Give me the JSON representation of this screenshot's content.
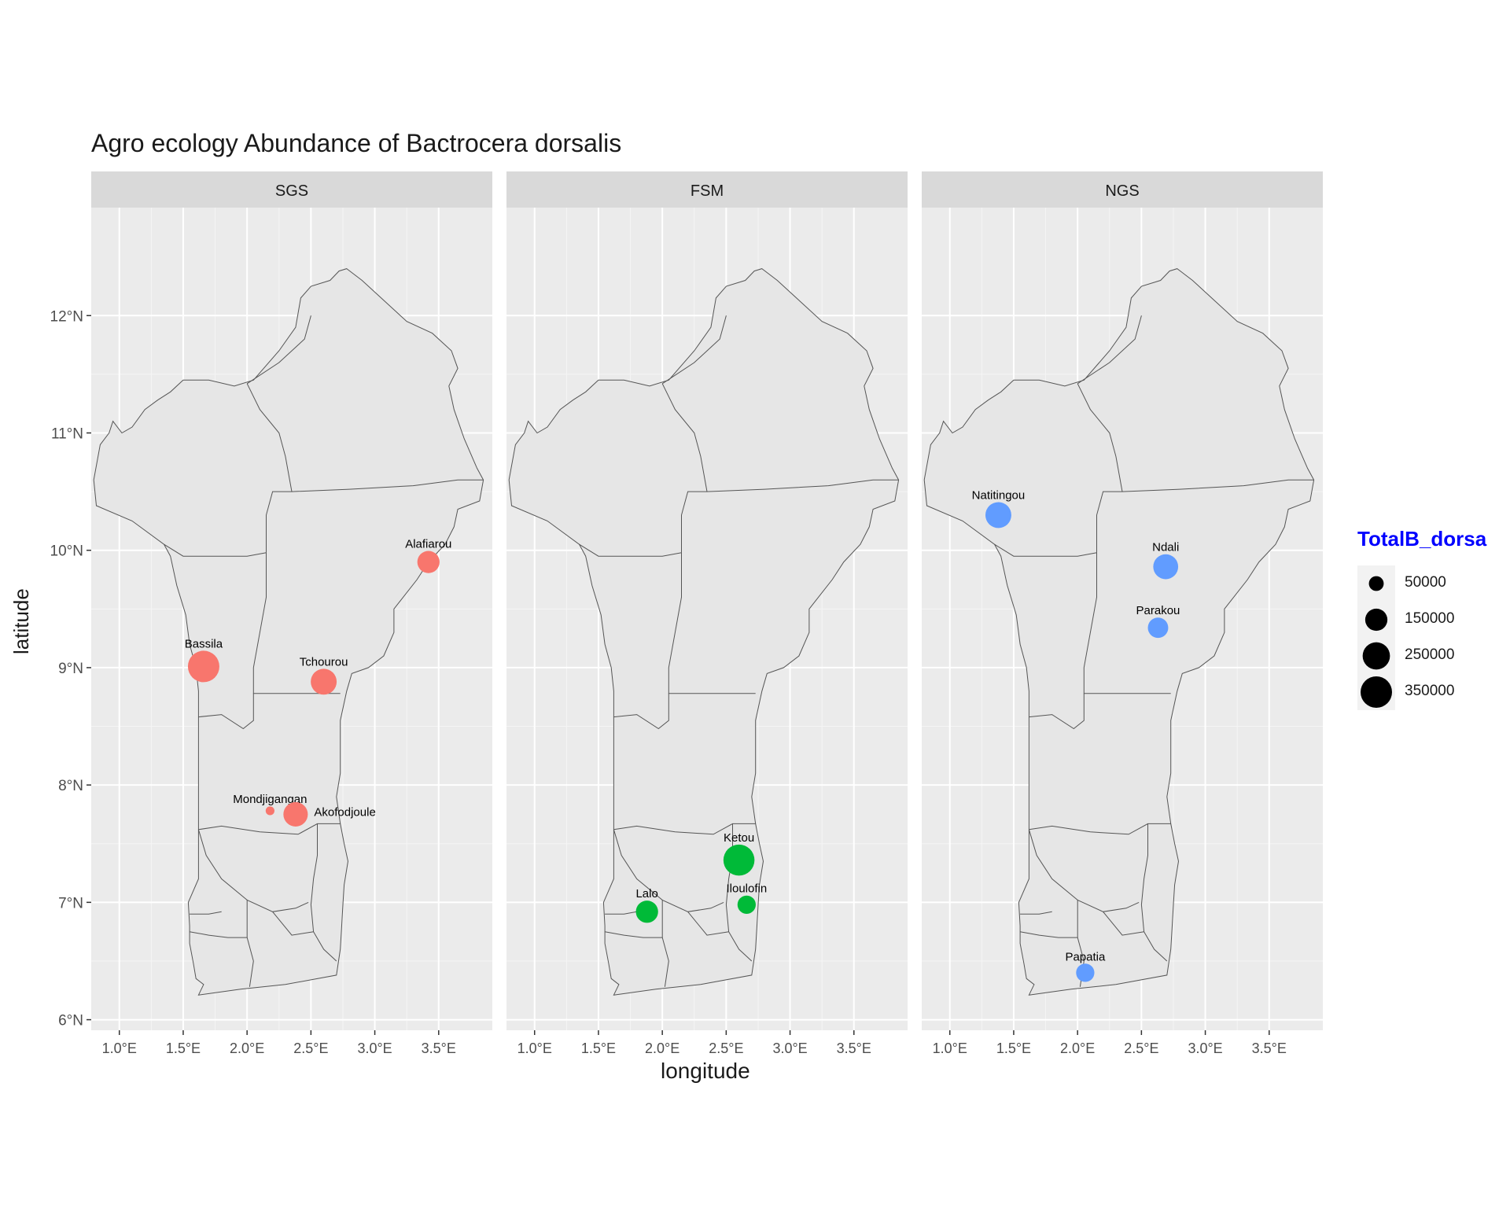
{
  "colors": {
    "SGS": "#F8766D",
    "FSM": "#00BA38",
    "NGS": "#619CFF",
    "legend_title": "#0000FF"
  },
  "chart_data": {
    "type": "scatter",
    "title": "Agro ecology Abundance of Bactrocera dorsalis",
    "xlabel": "longitude",
    "ylabel": "latitude",
    "xlim": [
      0.78,
      3.92
    ],
    "ylim": [
      5.91,
      12.92
    ],
    "x_ticks": [
      1.0,
      1.5,
      2.0,
      2.5,
      3.0,
      3.5
    ],
    "x_tick_labels": [
      "1.0°E",
      "1.5°E",
      "2.0°E",
      "2.5°E",
      "3.0°E",
      "3.5°E"
    ],
    "y_ticks": [
      6,
      7,
      8,
      9,
      10,
      11,
      12
    ],
    "y_tick_labels": [
      "6°N",
      "7°N",
      "8°N",
      "9°N",
      "10°N",
      "11°N",
      "12°N"
    ],
    "grid": true,
    "facets": [
      {
        "name": "SGS",
        "points": [
          {
            "label": "Alafiarou",
            "x": 3.42,
            "y": 9.9,
            "size": 150000
          },
          {
            "label": "Bassila",
            "x": 1.66,
            "y": 9.01,
            "size": 350000
          },
          {
            "label": "Tchourou",
            "x": 2.6,
            "y": 8.88,
            "size": 220000
          },
          {
            "label": "Mondjigangan",
            "x": 2.18,
            "y": 7.78,
            "size": 8000
          },
          {
            "label": "Akofodjoule",
            "x": 2.38,
            "y": 7.75,
            "size": 190000
          }
        ]
      },
      {
        "name": "FSM",
        "points": [
          {
            "label": "Ketou",
            "x": 2.6,
            "y": 7.36,
            "size": 340000
          },
          {
            "label": "Lalo",
            "x": 1.88,
            "y": 6.92,
            "size": 150000
          },
          {
            "label": "Iloulofin",
            "x": 2.66,
            "y": 6.98,
            "size": 90000
          }
        ]
      },
      {
        "name": "NGS",
        "points": [
          {
            "label": "Natitingou",
            "x": 1.38,
            "y": 10.3,
            "size": 220000
          },
          {
            "label": "Ndali",
            "x": 2.69,
            "y": 9.86,
            "size": 200000
          },
          {
            "label": "Parakou",
            "x": 2.63,
            "y": 9.34,
            "size": 120000
          },
          {
            "label": "Papatia",
            "x": 2.06,
            "y": 6.4,
            "size": 90000
          }
        ]
      }
    ],
    "legend": {
      "title": "TotalB_dorsa",
      "position": "right",
      "entries": [
        {
          "label": "50000",
          "value": 50000
        },
        {
          "label": "150000",
          "value": 150000
        },
        {
          "label": "250000",
          "value": 250000
        },
        {
          "label": "350000",
          "value": 350000
        }
      ]
    }
  },
  "map_outline": {
    "border": [
      [
        2.78,
        12.4
      ],
      [
        2.9,
        12.3
      ],
      [
        3.05,
        12.15
      ],
      [
        3.25,
        11.95
      ],
      [
        3.45,
        11.85
      ],
      [
        3.6,
        11.7
      ],
      [
        3.65,
        11.55
      ],
      [
        3.58,
        11.4
      ],
      [
        3.62,
        11.2
      ],
      [
        3.7,
        10.95
      ],
      [
        3.8,
        10.7
      ],
      [
        3.85,
        10.6
      ],
      [
        3.82,
        10.42
      ],
      [
        3.65,
        10.35
      ],
      [
        3.62,
        10.2
      ],
      [
        3.55,
        10.05
      ],
      [
        3.42,
        9.9
      ],
      [
        3.33,
        9.75
      ],
      [
        3.15,
        9.5
      ],
      [
        3.15,
        9.3
      ],
      [
        3.07,
        9.1
      ],
      [
        2.95,
        9.0
      ],
      [
        2.82,
        8.95
      ],
      [
        2.78,
        8.8
      ],
      [
        2.73,
        8.55
      ],
      [
        2.73,
        8.3
      ],
      [
        2.73,
        8.1
      ],
      [
        2.7,
        7.9
      ],
      [
        2.73,
        7.67
      ],
      [
        2.76,
        7.5
      ],
      [
        2.79,
        7.35
      ],
      [
        2.76,
        7.15
      ],
      [
        2.75,
        6.98
      ],
      [
        2.74,
        6.78
      ],
      [
        2.73,
        6.6
      ],
      [
        2.7,
        6.38
      ],
      [
        2.3,
        6.3
      ],
      [
        1.95,
        6.26
      ],
      [
        1.62,
        6.21
      ],
      [
        1.66,
        6.3
      ],
      [
        1.6,
        6.35
      ],
      [
        1.58,
        6.48
      ],
      [
        1.55,
        6.65
      ],
      [
        1.55,
        6.8
      ],
      [
        1.54,
        7.0
      ],
      [
        1.62,
        7.2
      ],
      [
        1.62,
        7.4
      ],
      [
        1.62,
        7.6
      ],
      [
        1.62,
        7.9
      ],
      [
        1.62,
        8.2
      ],
      [
        1.62,
        8.5
      ],
      [
        1.62,
        8.8
      ],
      [
        1.6,
        9.0
      ],
      [
        1.55,
        9.2
      ],
      [
        1.52,
        9.45
      ],
      [
        1.45,
        9.7
      ],
      [
        1.4,
        9.95
      ],
      [
        1.35,
        10.05
      ],
      [
        1.1,
        10.25
      ],
      [
        0.82,
        10.38
      ],
      [
        0.8,
        10.6
      ],
      [
        0.85,
        10.9
      ],
      [
        0.92,
        11.0
      ],
      [
        0.95,
        11.1
      ],
      [
        1.02,
        11.0
      ],
      [
        1.1,
        11.05
      ],
      [
        1.2,
        11.2
      ],
      [
        1.3,
        11.28
      ],
      [
        1.4,
        11.35
      ],
      [
        1.5,
        11.45
      ],
      [
        1.7,
        11.45
      ],
      [
        1.9,
        11.4
      ],
      [
        2.05,
        11.45
      ],
      [
        2.25,
        11.7
      ],
      [
        2.38,
        11.9
      ],
      [
        2.42,
        12.15
      ],
      [
        2.5,
        12.25
      ],
      [
        2.65,
        12.3
      ],
      [
        2.72,
        12.38
      ],
      [
        2.78,
        12.4
      ]
    ],
    "internal": [
      [
        [
          1.35,
          10.05
        ],
        [
          1.5,
          9.95
        ],
        [
          1.8,
          9.95
        ],
        [
          2.0,
          9.95
        ],
        [
          2.15,
          9.98
        ]
      ],
      [
        [
          2.15,
          9.98
        ],
        [
          2.15,
          10.3
        ],
        [
          2.2,
          10.5
        ],
        [
          2.35,
          10.5
        ],
        [
          2.8,
          10.52
        ],
        [
          3.3,
          10.55
        ],
        [
          3.65,
          10.6
        ],
        [
          3.85,
          10.6
        ]
      ],
      [
        [
          2.35,
          10.5
        ],
        [
          2.3,
          10.8
        ],
        [
          2.25,
          11.0
        ],
        [
          2.1,
          11.2
        ],
        [
          2.0,
          11.42
        ]
      ],
      [
        [
          2.0,
          11.42
        ],
        [
          2.25,
          11.6
        ],
        [
          2.45,
          11.8
        ],
        [
          2.5,
          12.0
        ]
      ],
      [
        [
          2.15,
          9.98
        ],
        [
          2.15,
          9.6
        ],
        [
          2.1,
          9.3
        ],
        [
          2.05,
          9.0
        ],
        [
          2.05,
          8.78
        ],
        [
          2.3,
          8.78
        ],
        [
          2.55,
          8.78
        ],
        [
          2.73,
          8.78
        ]
      ],
      [
        [
          1.62,
          8.58
        ],
        [
          1.8,
          8.6
        ],
        [
          1.97,
          8.48
        ],
        [
          2.05,
          8.55
        ],
        [
          2.05,
          8.78
        ]
      ],
      [
        [
          1.62,
          7.62
        ],
        [
          1.8,
          7.65
        ],
        [
          2.1,
          7.6
        ],
        [
          2.4,
          7.58
        ],
        [
          2.55,
          7.67
        ],
        [
          2.73,
          7.67
        ]
      ],
      [
        [
          2.55,
          7.67
        ],
        [
          2.55,
          7.4
        ],
        [
          2.52,
          7.2
        ],
        [
          2.5,
          6.98
        ],
        [
          2.52,
          6.75
        ],
        [
          2.6,
          6.6
        ],
        [
          2.7,
          6.5
        ]
      ],
      [
        [
          1.62,
          7.62
        ],
        [
          1.68,
          7.4
        ],
        [
          1.8,
          7.2
        ],
        [
          2.0,
          7.02
        ],
        [
          2.2,
          6.92
        ],
        [
          2.38,
          6.95
        ],
        [
          2.48,
          7.0
        ]
      ],
      [
        [
          1.55,
          6.75
        ],
        [
          1.7,
          6.72
        ],
        [
          1.85,
          6.7
        ],
        [
          2.0,
          6.7
        ],
        [
          2.05,
          6.5
        ],
        [
          2.02,
          6.28
        ]
      ],
      [
        [
          2.2,
          6.92
        ],
        [
          2.35,
          6.72
        ],
        [
          2.52,
          6.75
        ]
      ],
      [
        [
          2.0,
          7.02
        ],
        [
          2.0,
          6.7
        ]
      ],
      [
        [
          1.55,
          6.9
        ],
        [
          1.7,
          6.9
        ],
        [
          1.8,
          6.92
        ]
      ]
    ]
  }
}
